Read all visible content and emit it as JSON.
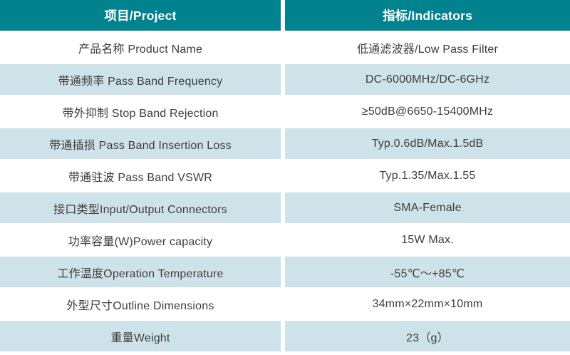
{
  "colors": {
    "header_bg": "#00828F",
    "header_text": "#FFFFFF",
    "alt_row_bg": "#CEE3E9",
    "text": "#3D3D3D",
    "divider": "#FFFFFF"
  },
  "header": {
    "project": "项目/Project",
    "indicators": "指标/Indicators"
  },
  "rows": [
    {
      "project": "产品名称 Product Name",
      "indicator": "低通滤波器/Low Pass Filter"
    },
    {
      "project": "带通频率 Pass Band Frequency",
      "indicator": "DC-6000MHz/DC-6GHz"
    },
    {
      "project": "带外抑制 Stop Band Rejection",
      "indicator": "≥50dB@6650-15400MHz"
    },
    {
      "project": "带通插损 Pass Band Insertion Loss",
      "indicator": "Typ.0.6dB/Max.1.5dB"
    },
    {
      "project": "带通驻波 Pass Band VSWR",
      "indicator": "Typ.1.35/Max.1.55"
    },
    {
      "project": "接口类型Input/Output Connectors",
      "indicator": "SMA-Female"
    },
    {
      "project": "功率容量(W)Power capacity",
      "indicator": "15W Max."
    },
    {
      "project": "工作温度Operation Temperature",
      "indicator": "-55℃～+85℃"
    },
    {
      "project": "外型尺寸Outline Dimensions",
      "indicator": "34mm×22mm×10mm"
    },
    {
      "project": "重量Weight",
      "indicator": "23（g）"
    }
  ]
}
